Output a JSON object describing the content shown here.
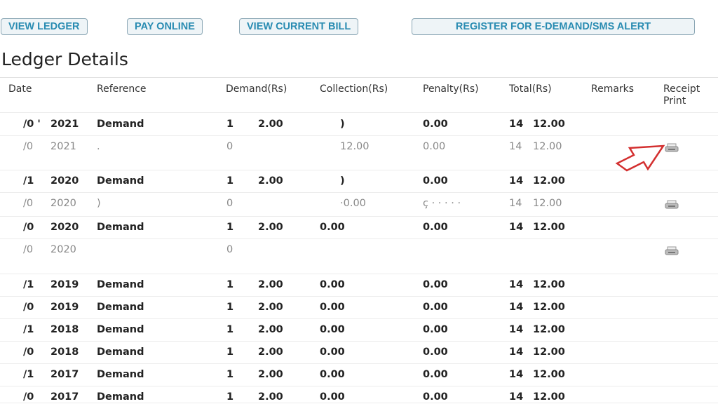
{
  "buttons": {
    "view_ledger": "VIEW LEDGER",
    "pay_online": "PAY ONLINE",
    "view_current_bill": "VIEW CURRENT BILL",
    "register": "REGISTER FOR E-DEMAND/SMS ALERT"
  },
  "title": "Ledger Details",
  "columns": {
    "date": "Date",
    "reference": "Reference",
    "demand": "Demand(Rs)",
    "collection": "Collection(Rs)",
    "penalty": "Penalty(Rs)",
    "total": "Total(Rs)",
    "remarks": "Remarks",
    "receipt": "Receipt Print"
  },
  "rows": [
    {
      "type": "dem",
      "date": "/0 '",
      "year": "2021",
      "ref": "Demand",
      "d1": "1",
      "d2": "2.00",
      "coll": ")",
      "pen": "0.00",
      "t1": "14",
      "t2": "12.00",
      "receipt": false
    },
    {
      "type": "pay",
      "date": "/0",
      "year": "2021",
      "ref": ".",
      "d1": "0",
      "d2": "",
      "coll": "12.00",
      "pen": "0.00",
      "t1": "14",
      "t2": "12.00",
      "receipt": true
    },
    {
      "type": "dem",
      "date": "/1",
      "year": "2020",
      "ref": "Demand",
      "d1": "1",
      "d2": "2.00",
      "coll": ")",
      "pen": "0.00",
      "t1": "14",
      "t2": "12.00",
      "receipt": false
    },
    {
      "type": "pay",
      "date": "/0",
      "year": "2020",
      "ref": ")",
      "d1": "0",
      "d2": "",
      "coll": "·0.00",
      "pen": "ç · · · · ·",
      "t1": "14",
      "t2": "12.00",
      "receipt": true
    },
    {
      "type": "dem",
      "date": "/0",
      "year": "2020",
      "ref": "Demand",
      "d1": "1",
      "d2": "2.00",
      "coll": "0.00",
      "pen": "0.00",
      "t1": "14",
      "t2": "12.00",
      "receipt": false
    },
    {
      "type": "pay",
      "date": "/0",
      "year": "2020",
      "ref": "",
      "d1": "0",
      "d2": "",
      "coll": "",
      "pen": "",
      "t1": "",
      "t2": "",
      "receipt": true
    },
    {
      "type": "dem",
      "date": "/1",
      "year": "2019",
      "ref": "Demand",
      "d1": "1",
      "d2": "2.00",
      "coll": "0.00",
      "pen": "0.00",
      "t1": "14",
      "t2": "12.00",
      "receipt": false
    },
    {
      "type": "dem",
      "date": "/0",
      "year": "2019",
      "ref": "Demand",
      "d1": "1",
      "d2": "2.00",
      "coll": "0.00",
      "pen": "0.00",
      "t1": "14",
      "t2": "12.00",
      "receipt": false
    },
    {
      "type": "dem",
      "date": "/1",
      "year": "2018",
      "ref": "Demand",
      "d1": "1",
      "d2": "2.00",
      "coll": "0.00",
      "pen": "0.00",
      "t1": "14",
      "t2": "12.00",
      "receipt": false
    },
    {
      "type": "dem",
      "date": "/0",
      "year": "2018",
      "ref": "Demand",
      "d1": "1",
      "d2": "2.00",
      "coll": "0.00",
      "pen": "0.00",
      "t1": "14",
      "t2": "12.00",
      "receipt": false
    },
    {
      "type": "dem",
      "date": "/1",
      "year": "2017",
      "ref": "Demand",
      "d1": "1",
      "d2": "2.00",
      "coll": "0.00",
      "pen": "0.00",
      "t1": "14",
      "t2": "12.00",
      "receipt": false
    },
    {
      "type": "dem",
      "date": "/0",
      "year": "2017",
      "ref": "Demand",
      "d1": "1",
      "d2": "2.00",
      "coll": "0.00",
      "pen": "0.00",
      "t1": "14",
      "t2": "12.00",
      "receipt": false
    }
  ],
  "colors": {
    "button_text": "#2a8cb2",
    "button_bg": "#eef4f7",
    "arrow": "#d32f2f"
  },
  "icons": {
    "receipt": "printer-icon",
    "annotation": "arrow-icon"
  }
}
